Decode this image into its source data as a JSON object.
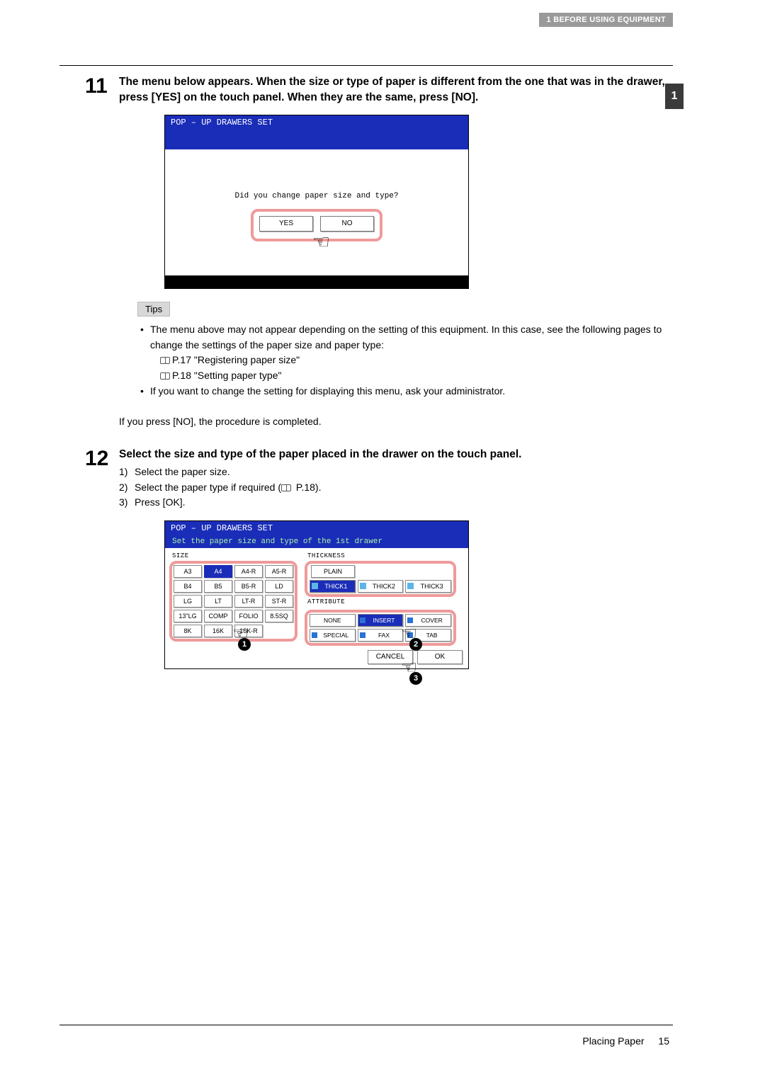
{
  "header": {
    "section": "1 BEFORE USING EQUIPMENT",
    "side_tab": "1"
  },
  "step11": {
    "num": "11",
    "title": "The menu below appears. When the size or type of paper is different from the one that was in the drawer, press [YES] on the touch panel. When they are the same, press [NO]."
  },
  "shot1": {
    "title": "POP – UP DRAWERS  SET",
    "question": "Did you change paper size and type?",
    "yes": "YES",
    "no": "NO"
  },
  "tips": {
    "label": "Tips",
    "bullet1": "The menu above may not appear depending on the setting of this equipment. In this case, see the following pages to change the settings of the paper size and paper type:",
    "ref1": "P.17 \"Registering paper size\"",
    "ref2": "P.18 \"Setting paper type\"",
    "bullet2": "If you want to change the setting for displaying this menu, ask your administrator."
  },
  "after_tips": "If you press [NO], the procedure is completed.",
  "step12": {
    "num": "12",
    "title": "Select the size and type of the paper placed in the drawer on the touch panel.",
    "l1n": "1)",
    "l1": "Select the paper size.",
    "l2n": "2)",
    "l2": "Select the paper type if required (",
    "l2b": " P.18).",
    "l3n": "3)",
    "l3": "Press [OK]."
  },
  "shot2": {
    "title": "POP – UP DRAWERS  SET",
    "subhead": "Set the paper size and type of the 1st drawer",
    "size_title": "SIZE",
    "thick_title": "THICKNESS",
    "attr_title": "ATTRIBUTE",
    "sizes": [
      "A3",
      "A4",
      "A4-R",
      "A5-R",
      "B4",
      "B5",
      "B5-R",
      "LD",
      "LG",
      "LT",
      "LT-R",
      "ST-R",
      "13\"LG",
      "COMP",
      "FOLIO",
      "8.5SQ",
      "8K",
      "16K",
      "16K-R"
    ],
    "size_selected": 1,
    "plain": "PLAIN",
    "thick": [
      "THICK1",
      "THICK2",
      "THICK3"
    ],
    "thick_selected": 0,
    "none": "NONE",
    "attrs": [
      "INSERT",
      "COVER",
      "SPECIAL",
      "FAX",
      "TAB"
    ],
    "attr_selected": 0,
    "cancel": "CANCEL",
    "ok": "OK",
    "callouts": [
      "1",
      "2",
      "3"
    ]
  },
  "footer": {
    "title": "Placing Paper",
    "page": "15"
  },
  "colors": {
    "blue": "#1a2db8",
    "highlight_border": "#ef9a9a",
    "header_gray": "#9a9a9a",
    "side_tab": "#3a3a3a"
  }
}
